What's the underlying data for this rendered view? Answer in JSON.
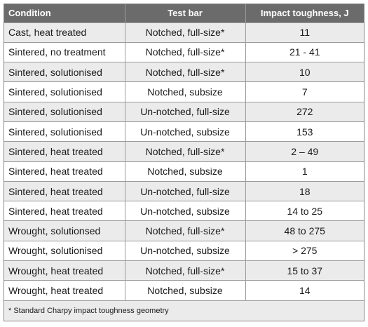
{
  "table": {
    "headers": [
      "Condition",
      "Test bar",
      "Impact toughness, J"
    ],
    "rows": [
      [
        "Cast, heat treated",
        "Notched, full-size*",
        "11"
      ],
      [
        "Sintered, no treatment",
        "Notched, full-size*",
        "21 - 41"
      ],
      [
        "Sintered, solutionised",
        "Notched, full-size*",
        "10"
      ],
      [
        "Sintered, solutionised",
        "Notched, subsize",
        "7"
      ],
      [
        "Sintered, solutionised",
        "Un-notched, full-size",
        "272"
      ],
      [
        "Sintered, solutionised",
        "Un-notched, subsize",
        "153"
      ],
      [
        "Sintered, heat treated",
        "Notched, full-size*",
        "2 – 49"
      ],
      [
        "Sintered, heat treated",
        "Notched, subsize",
        "1"
      ],
      [
        "Sintered, heat treated",
        "Un-notched, full-size",
        "18"
      ],
      [
        "Sintered, heat treated",
        "Un-notched, subsize",
        "14 to 25"
      ],
      [
        "Wrought, solutionsed",
        "Notched, full-size*",
        "48 to 275"
      ],
      [
        "Wrought, solutionised",
        "Un-notched, subsize",
        "> 275"
      ],
      [
        "Wrought, heat treated",
        "Notched, full-size*",
        "15 to 37"
      ],
      [
        "Wrought, heat treated",
        "Notched, subsize",
        "14"
      ]
    ],
    "footnote": "* Standard Charpy impact toughness geometry"
  },
  "colors": {
    "header_bg": "#6b6b6b",
    "header_text": "#ffffff",
    "row_odd": "#ebebeb",
    "row_even": "#ffffff",
    "grid": "#9a9a9a"
  }
}
